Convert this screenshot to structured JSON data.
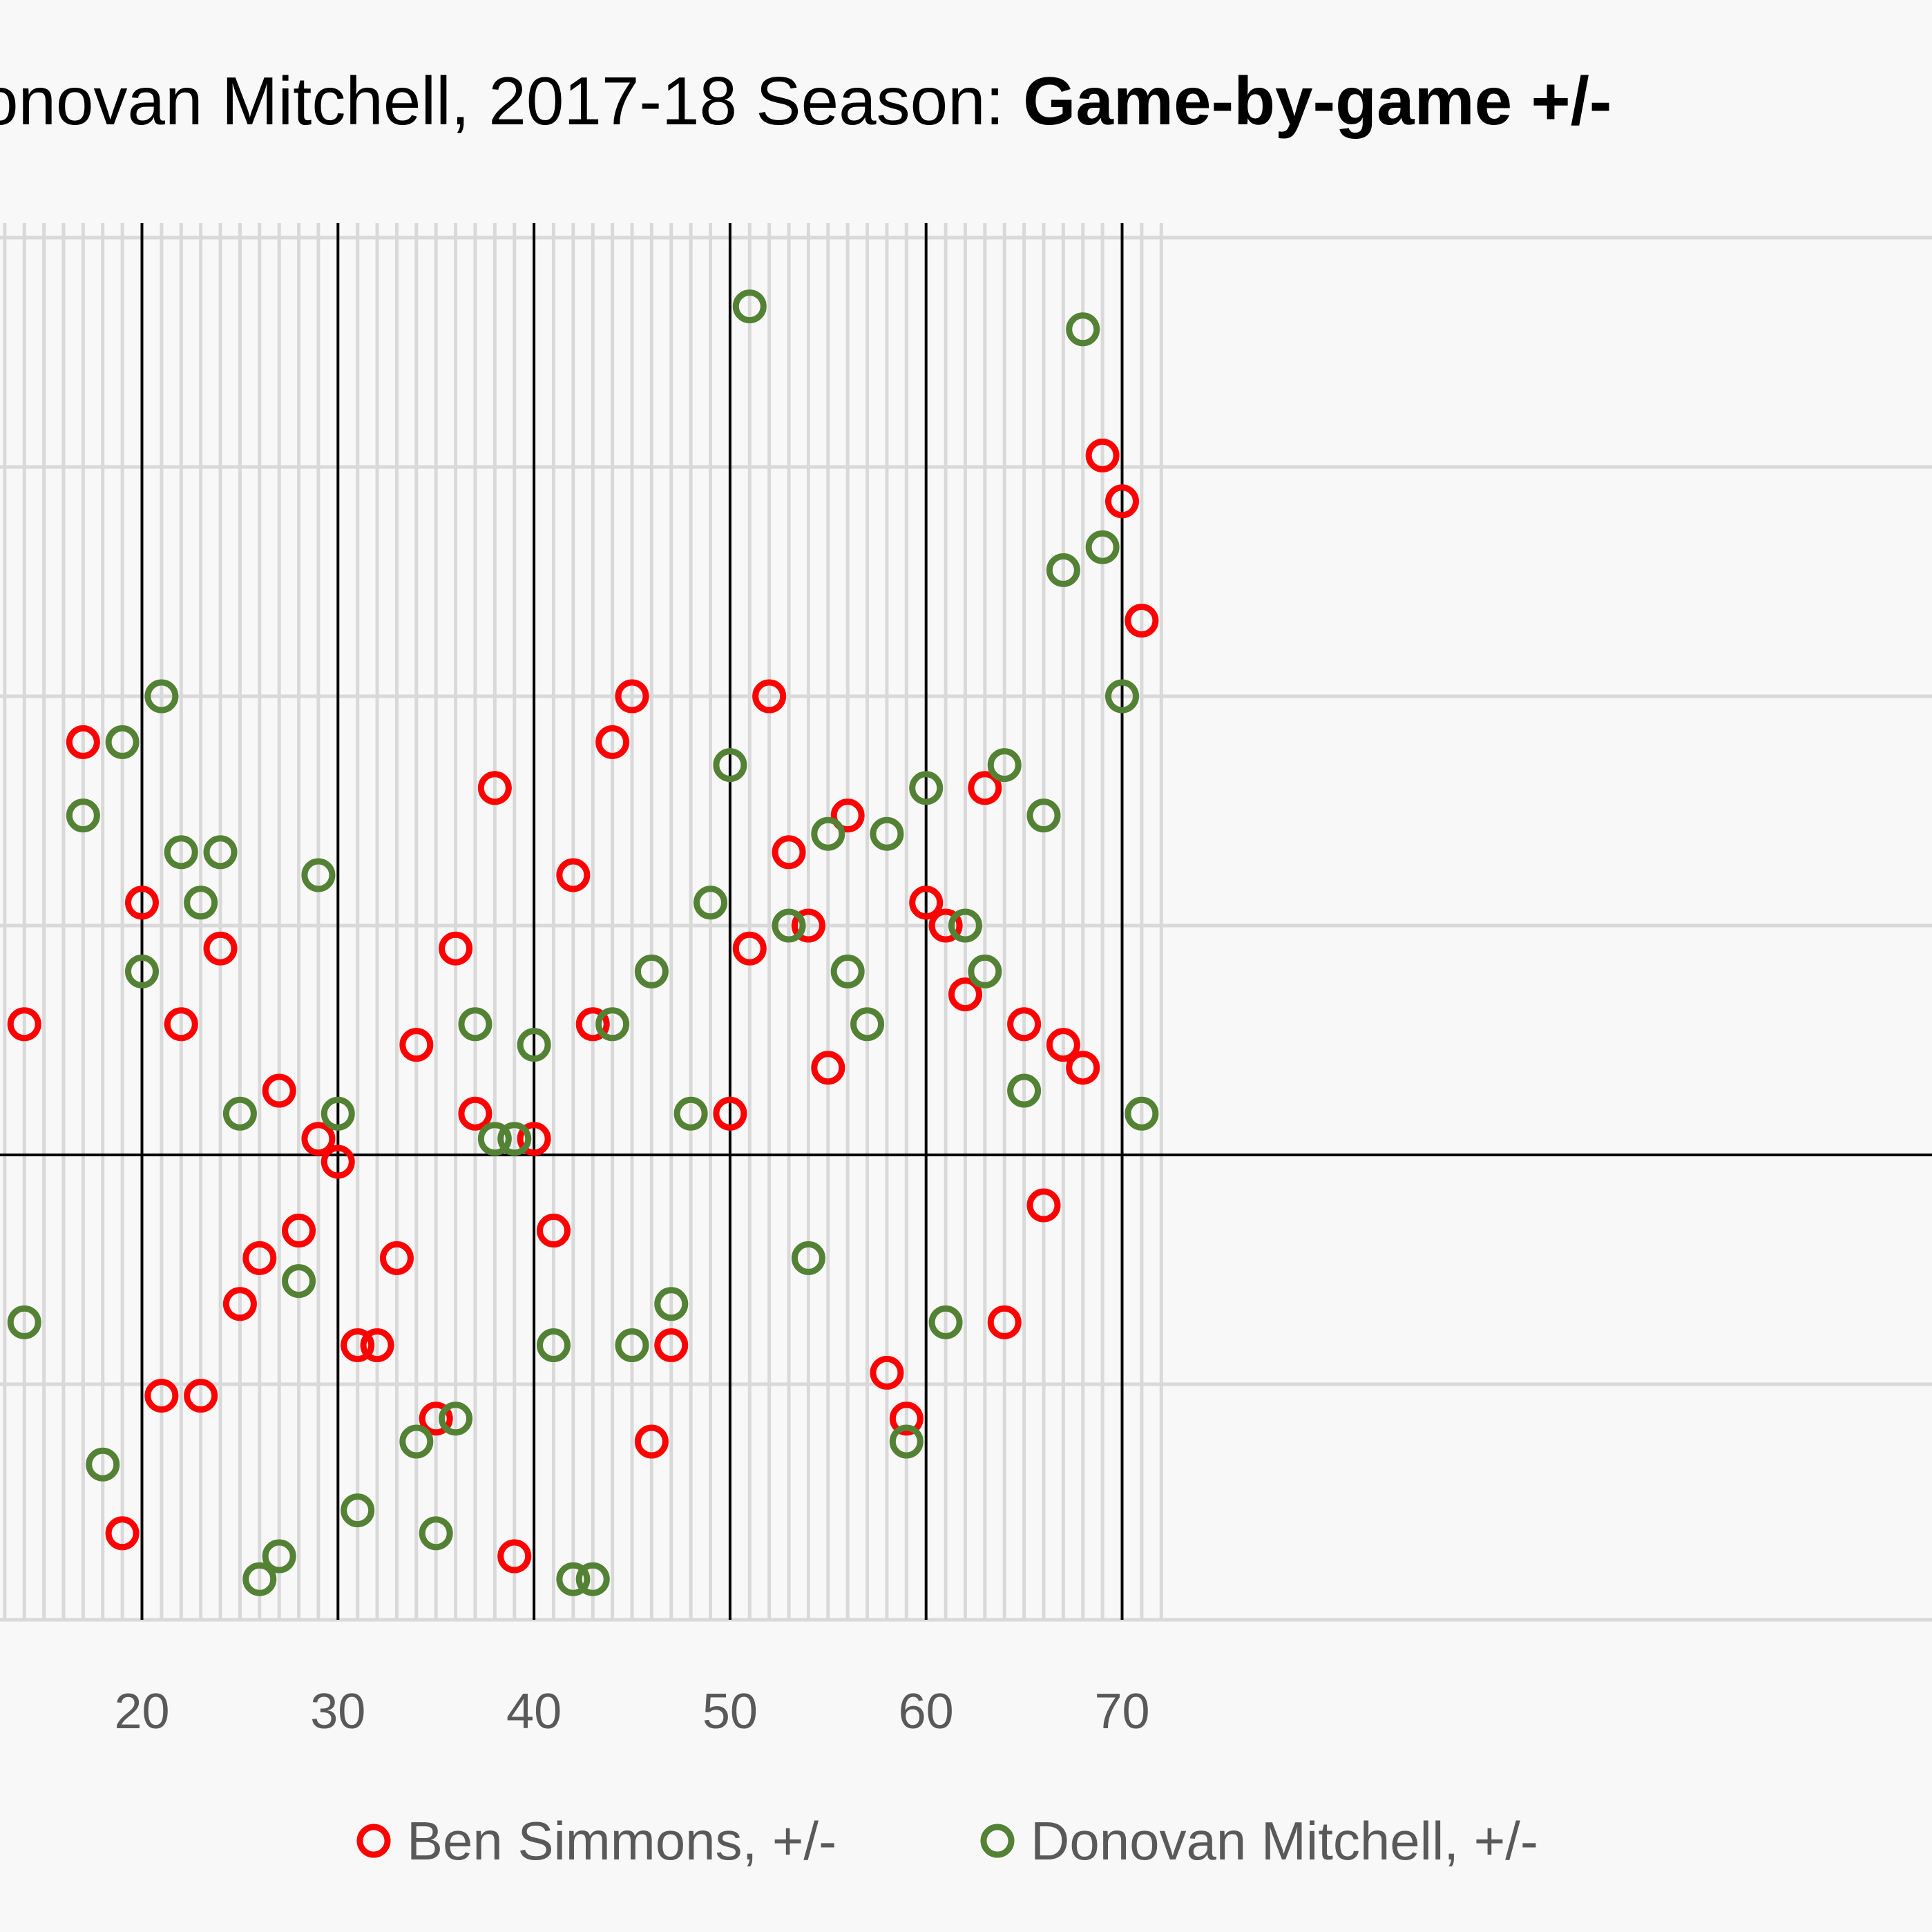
{
  "chart_data": {
    "type": "scatter",
    "title": {
      "prefix": "onovan Mitchell, 2017-18 Season: ",
      "bold": "Game-by-game +/-"
    },
    "xlabel": "",
    "ylabel": "",
    "x_ticks": [
      "20",
      "30",
      "40",
      "50",
      "60",
      "70"
    ],
    "xlim": [
      13.9,
      71.2
    ],
    "ylim": [
      -20.5,
      40.5
    ],
    "grid": true,
    "legend_position": "bottom",
    "series": [
      {
        "name": "Ben Simmons, +/-",
        "color": "#ff0000",
        "points": [
          [
            14,
            5.7
          ],
          [
            17,
            18
          ],
          [
            19,
            -16.5
          ],
          [
            20,
            11
          ],
          [
            21,
            -10.5
          ],
          [
            22,
            5.7
          ],
          [
            23,
            -10.5
          ],
          [
            24,
            9
          ],
          [
            25,
            -6.5
          ],
          [
            26,
            -4.5
          ],
          [
            27,
            2.8
          ],
          [
            28,
            -3.3
          ],
          [
            29,
            0.7
          ],
          [
            30,
            -0.3
          ],
          [
            31,
            -8.3
          ],
          [
            32,
            -8.3
          ],
          [
            33,
            -4.5
          ],
          [
            34,
            4.8
          ],
          [
            35,
            -11.5
          ],
          [
            36,
            9
          ],
          [
            37,
            1.8
          ],
          [
            38,
            16
          ],
          [
            39,
            -17.5
          ],
          [
            40,
            0.7
          ],
          [
            41,
            -3.3
          ],
          [
            42,
            12.2
          ],
          [
            43,
            5.7
          ],
          [
            44,
            18
          ],
          [
            45,
            20
          ],
          [
            46,
            -12.5
          ],
          [
            47,
            -8.3
          ],
          [
            50,
            1.8
          ],
          [
            51,
            9
          ],
          [
            52,
            20
          ],
          [
            53,
            13.2
          ],
          [
            54,
            10
          ],
          [
            55,
            3.8
          ],
          [
            56,
            14.8
          ],
          [
            58,
            -9.5
          ],
          [
            59,
            -11.5
          ],
          [
            60,
            11
          ],
          [
            61,
            10
          ],
          [
            62,
            7
          ],
          [
            63,
            16
          ],
          [
            64,
            -7.3
          ],
          [
            65,
            5.7
          ],
          [
            66,
            -2.2
          ],
          [
            67,
            4.8
          ],
          [
            68,
            3.8
          ],
          [
            69,
            30.5
          ],
          [
            70,
            28.5
          ],
          [
            71,
            23.3
          ]
        ]
      },
      {
        "name": "Donovan Mitchell, +/-",
        "color": "#548235",
        "points": [
          [
            14,
            -7.3
          ],
          [
            17,
            14.8
          ],
          [
            18,
            -13.5
          ],
          [
            19,
            18
          ],
          [
            20,
            8
          ],
          [
            21,
            20
          ],
          [
            22,
            13.2
          ],
          [
            23,
            11
          ],
          [
            24,
            13.2
          ],
          [
            25,
            1.8
          ],
          [
            26,
            -18.5
          ],
          [
            27,
            -17.5
          ],
          [
            28,
            -5.5
          ],
          [
            29,
            12.2
          ],
          [
            30,
            1.8
          ],
          [
            31,
            -15.5
          ],
          [
            34,
            -12.5
          ],
          [
            35,
            -16.5
          ],
          [
            36,
            -11.5
          ],
          [
            37,
            5.7
          ],
          [
            38,
            0.7
          ],
          [
            39,
            0.7
          ],
          [
            40,
            4.8
          ],
          [
            41,
            -8.3
          ],
          [
            42,
            -18.5
          ],
          [
            43,
            -18.5
          ],
          [
            44,
            5.7
          ],
          [
            45,
            -8.3
          ],
          [
            46,
            8
          ],
          [
            47,
            -6.5
          ],
          [
            48,
            1.8
          ],
          [
            49,
            11
          ],
          [
            50,
            17
          ],
          [
            51,
            37
          ],
          [
            53,
            10
          ],
          [
            54,
            -4.5
          ],
          [
            55,
            14
          ],
          [
            56,
            8
          ],
          [
            57,
            5.7
          ],
          [
            58,
            14
          ],
          [
            59,
            -12.5
          ],
          [
            60,
            16
          ],
          [
            61,
            -7.3
          ],
          [
            62,
            10
          ],
          [
            63,
            8
          ],
          [
            64,
            17
          ],
          [
            65,
            2.8
          ],
          [
            66,
            14.8
          ],
          [
            67,
            25.5
          ],
          [
            68,
            36
          ],
          [
            69,
            26.5
          ],
          [
            70,
            20
          ],
          [
            71,
            1.8
          ]
        ]
      }
    ]
  }
}
